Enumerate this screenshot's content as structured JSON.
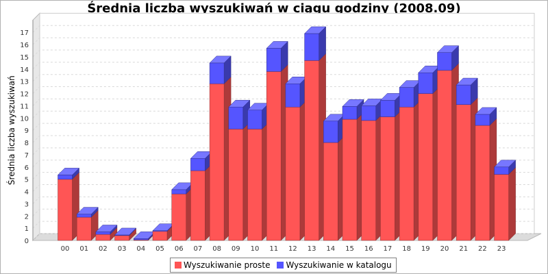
{
  "title": "Średnia liczba wyszukiwań w ciągu godziny (2008.09)",
  "chart_data": {
    "type": "bar",
    "stacked": true,
    "title": "Średnia liczba wyszukiwań w ciągu godziny (2008.09)",
    "xlabel": "",
    "ylabel": "Średnia liczba wyszukiwań",
    "ylim": [
      0,
      18
    ],
    "yticks": [
      0,
      1,
      2,
      3,
      4,
      5,
      6,
      7,
      8,
      9,
      10,
      11,
      12,
      13,
      14,
      15,
      16,
      17
    ],
    "grid": true,
    "legend_position": "bottom",
    "categories": [
      "00",
      "01",
      "02",
      "03",
      "04",
      "05",
      "06",
      "07",
      "08",
      "09",
      "10",
      "11",
      "12",
      "13",
      "14",
      "15",
      "16",
      "17",
      "18",
      "19",
      "20",
      "21",
      "22",
      "23"
    ],
    "series": [
      {
        "name": "Wyszukiwanie proste",
        "color": "#ff5555",
        "values": [
          5.0,
          1.9,
          0.5,
          0.4,
          0.05,
          0.75,
          3.8,
          5.7,
          12.8,
          9.1,
          9.1,
          13.8,
          10.9,
          14.7,
          8.0,
          9.9,
          9.8,
          10.1,
          10.9,
          12.0,
          13.9,
          11.1,
          9.4,
          5.4
        ]
      },
      {
        "name": "Wyszukiwanie w katalogu",
        "color": "#5555ff",
        "values": [
          0.35,
          0.25,
          0.2,
          0.05,
          0.1,
          0.05,
          0.35,
          1.0,
          1.7,
          1.8,
          1.55,
          1.9,
          1.9,
          2.2,
          1.75,
          1.05,
          1.2,
          1.35,
          1.6,
          1.7,
          1.45,
          1.6,
          0.9,
          0.6
        ]
      }
    ]
  }
}
